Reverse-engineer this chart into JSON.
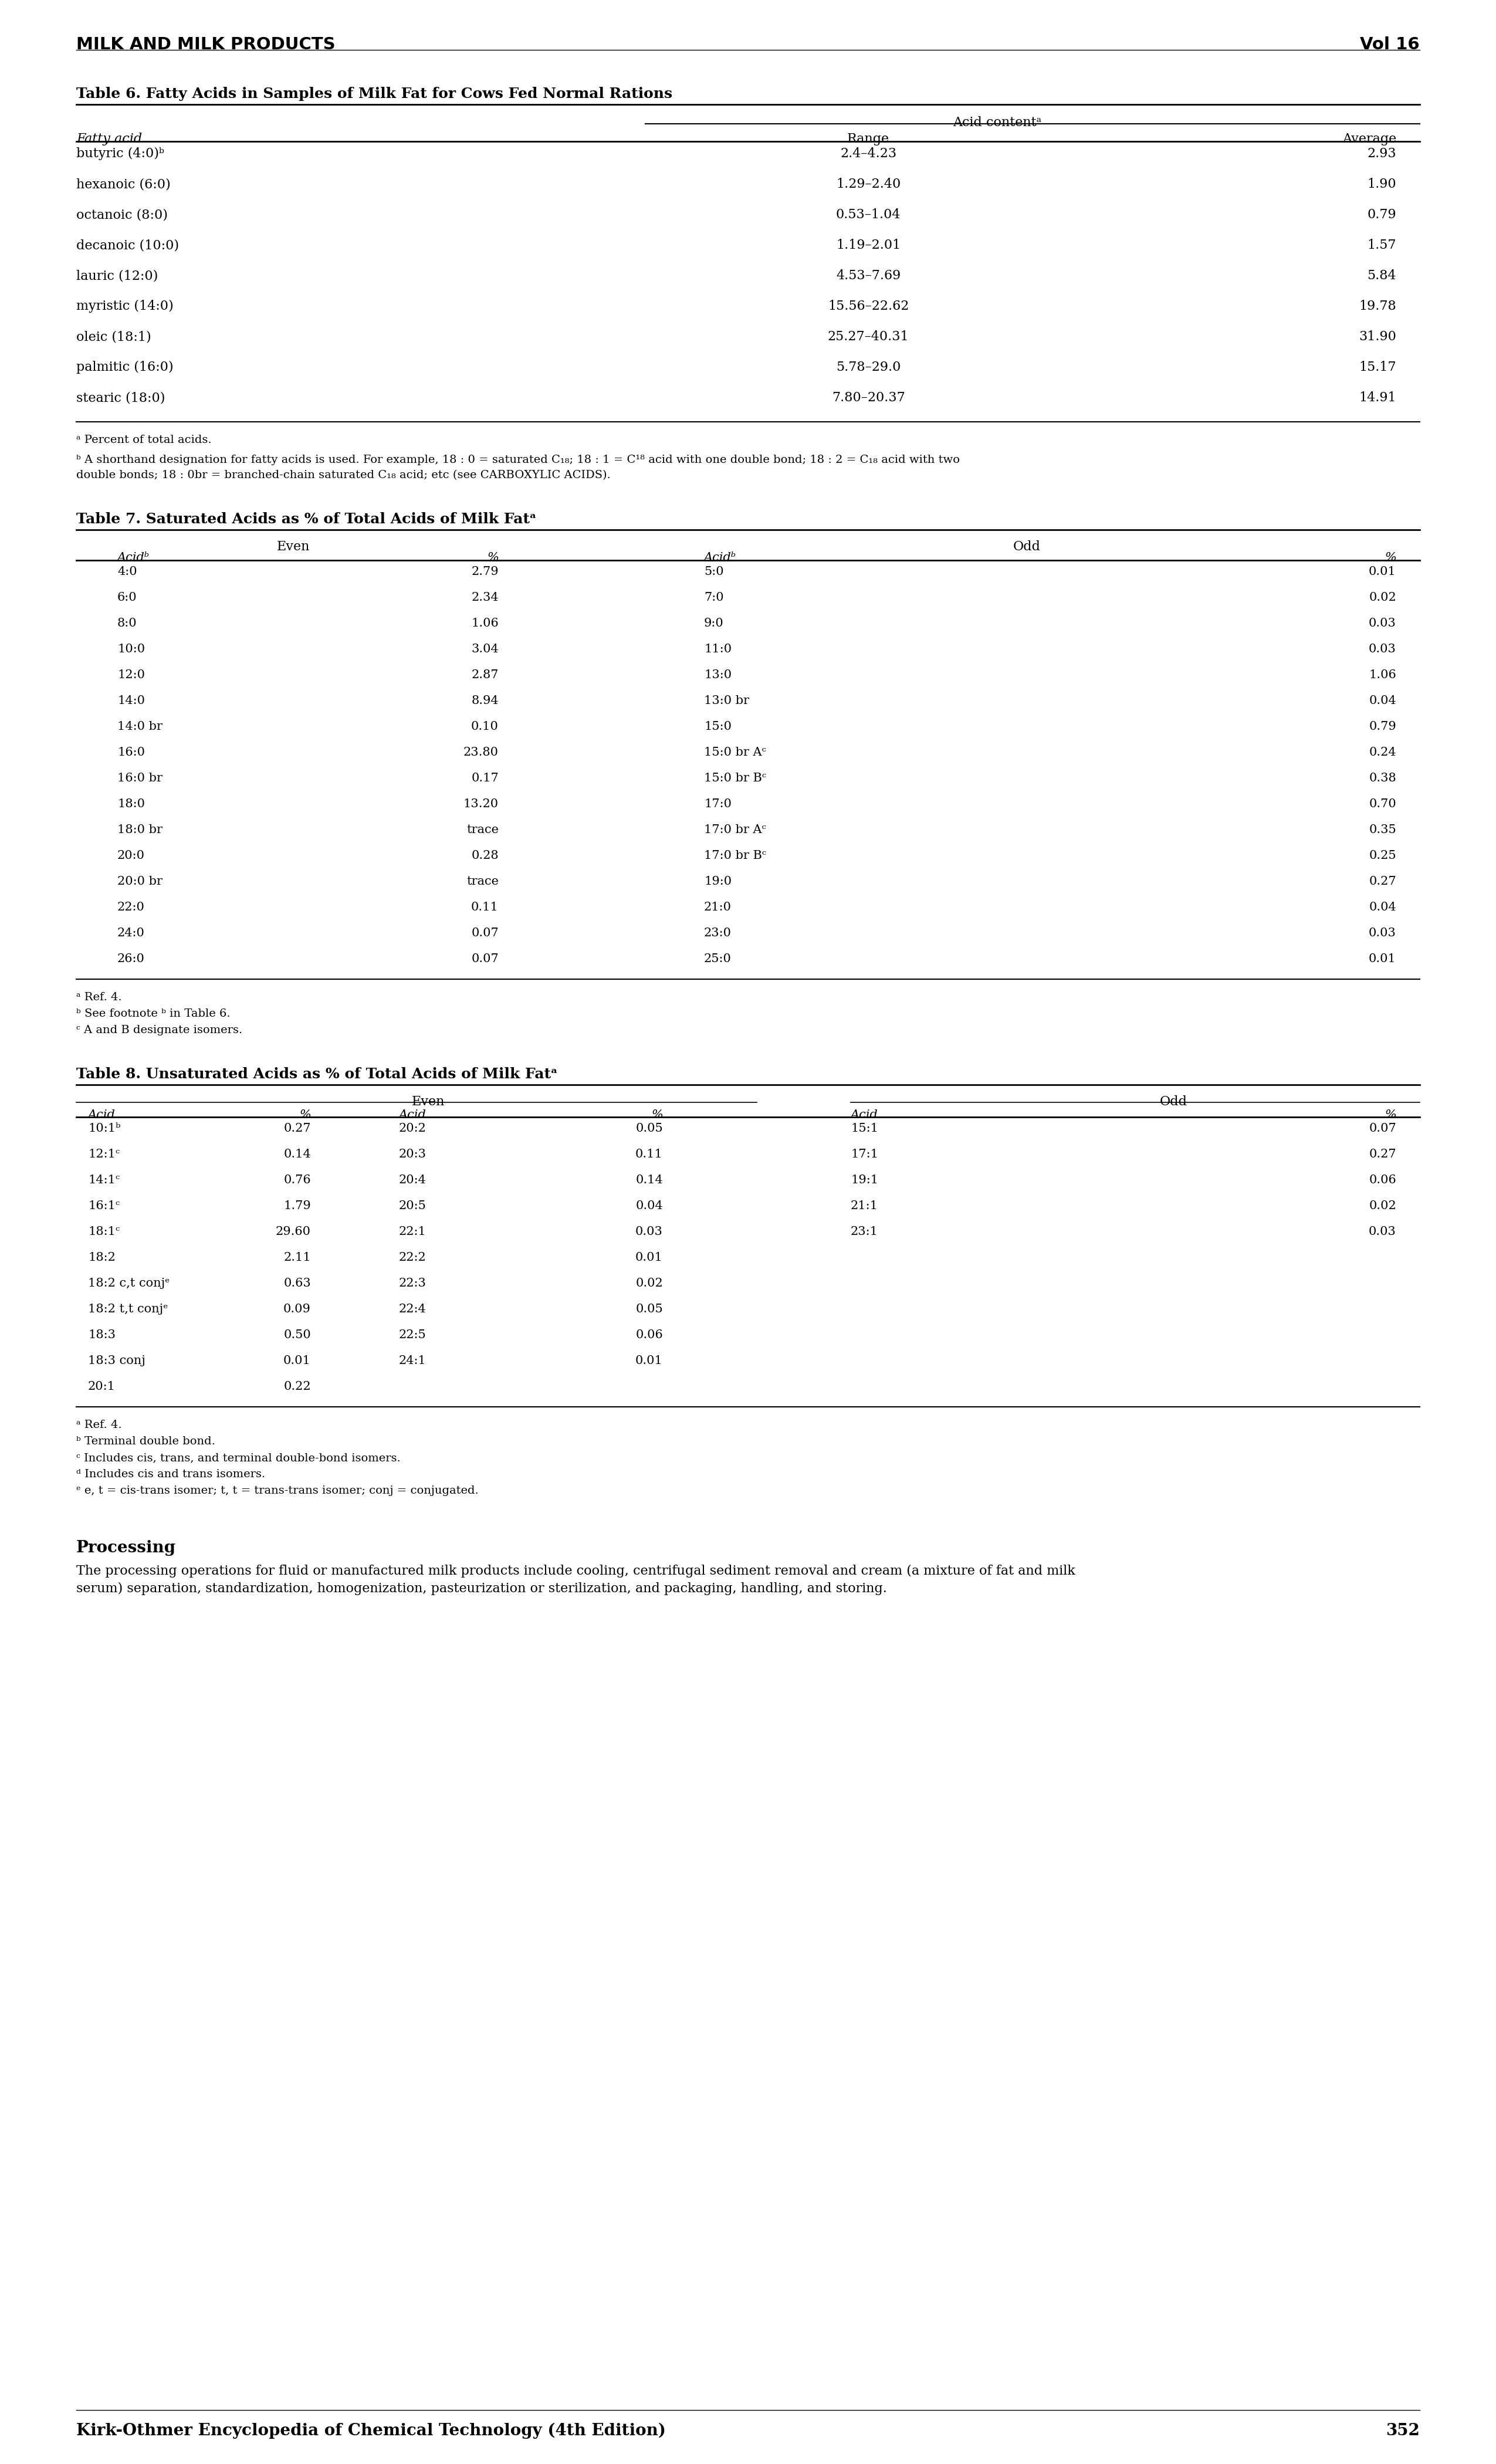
{
  "page_title_left": "MILK AND MILK PRODUCTS",
  "page_title_right": "Vol 16",
  "page_number": "352",
  "page_footer": "Kirk-Othmer Encyclopedia of Chemical Technology (4th Edition)",
  "table6_title": "Table 6. Fatty Acids in Samples of Milk Fat for Cows Fed Normal Rations",
  "table6_header_span": "Acid contentᵃ",
  "table6_col1": "Fatty acid",
  "table6_col2": "Range",
  "table6_col3": "Average",
  "table6_footnote_a": "ᵃ Percent of total acids.",
  "table6_footnote_b1": "ᵇ A shorthand designation for fatty acids is used. For example, 18 : 0 = saturated C₁₈; 18 : 1 = C¹⁸ acid with one double bond; 18 : 2 = C₁₈ acid with two",
  "table6_footnote_b2": "double bonds; 18 : 0br = branched-chain saturated C₁₈ acid; etc (see CARBOXYLIC ACIDS).",
  "table6_rows": [
    [
      "butyric (4:0)ᵇ",
      "2.4–4.23",
      "2.93"
    ],
    [
      "hexanoic (6:0)",
      "1.29–2.40",
      "1.90"
    ],
    [
      "octanoic (8:0)",
      "0.53–1.04",
      "0.79"
    ],
    [
      "decanoic (10:0)",
      "1.19–2.01",
      "1.57"
    ],
    [
      "lauric (12:0)",
      "4.53–7.69",
      "5.84"
    ],
    [
      "myristic (14:0)",
      "15.56–22.62",
      "19.78"
    ],
    [
      "oleic (18:1)",
      "25.27–40.31",
      "31.90"
    ],
    [
      "palmitic (16:0)",
      "5.78–29.0",
      "15.17"
    ],
    [
      "stearic (18:0)",
      "7.80–20.37",
      "14.91"
    ]
  ],
  "table7_title": "Table 7. Saturated Acids as % of Total Acids of Milk Fatᵃ",
  "table7_footnote_a": "ᵃ Ref. 4.",
  "table7_footnote_b": "ᵇ See footnote ᵇ in Table 6.",
  "table7_footnote_c": "ᶜ A and B designate isomers.",
  "table7_even_header": "Even",
  "table7_odd_header": "Odd",
  "table7_col_acid": "Acidᵇ",
  "table7_col_pct": "%",
  "table7_col_acid2": "Acidᵇ",
  "table7_col_pct2": "%",
  "table7_even_rows": [
    [
      "4:0",
      "2.79"
    ],
    [
      "6:0",
      "2.34"
    ],
    [
      "8:0",
      "1.06"
    ],
    [
      "10:0",
      "3.04"
    ],
    [
      "12:0",
      "2.87"
    ],
    [
      "14:0",
      "8.94"
    ],
    [
      "14:0 br",
      "0.10"
    ],
    [
      "16:0",
      "23.80"
    ],
    [
      "16:0 br",
      "0.17"
    ],
    [
      "18:0",
      "13.20"
    ],
    [
      "18:0 br",
      "trace"
    ],
    [
      "20:0",
      "0.28"
    ],
    [
      "20:0 br",
      "trace"
    ],
    [
      "22:0",
      "0.11"
    ],
    [
      "24:0",
      "0.07"
    ],
    [
      "26:0",
      "0.07"
    ]
  ],
  "table7_odd_rows": [
    [
      "5:0",
      "0.01"
    ],
    [
      "7:0",
      "0.02"
    ],
    [
      "9:0",
      "0.03"
    ],
    [
      "11:0",
      "0.03"
    ],
    [
      "13:0",
      "1.06"
    ],
    [
      "13:0 br",
      "0.04"
    ],
    [
      "15:0",
      "0.79"
    ],
    [
      "15:0 br Aᶜ",
      "0.24"
    ],
    [
      "15:0 br Bᶜ",
      "0.38"
    ],
    [
      "17:0",
      "0.70"
    ],
    [
      "17:0 br Aᶜ",
      "0.35"
    ],
    [
      "17:0 br Bᶜ",
      "0.25"
    ],
    [
      "19:0",
      "0.27"
    ],
    [
      "21:0",
      "0.04"
    ],
    [
      "23:0",
      "0.03"
    ],
    [
      "25:0",
      "0.01"
    ]
  ],
  "table8_title": "Table 8. Unsaturated Acids as % of Total Acids of Milk Fatᵃ",
  "table8_footnote_a": "ᵃ Ref. 4.",
  "table8_footnote_b": "ᵇ Terminal double bond.",
  "table8_footnote_c": "ᶜ Includes cis, trans, and terminal double-bond isomers.",
  "table8_footnote_d": "ᵈ Includes cis and trans isomers.",
  "table8_footnote_e": "ᵉ e, t = cis-trans isomer; t, t = trans-trans isomer; conj = conjugated.",
  "table8_even_header": "Even",
  "table8_odd_header": "Odd",
  "table8_col1": "Acid",
  "table8_col2": "%",
  "table8_col3": "Acid",
  "table8_col4": "%",
  "table8_col5": "Acid",
  "table8_col6": "%",
  "table8_even_rows": [
    [
      "10:1ᵇ",
      "0.27",
      "20:2",
      "0.05"
    ],
    [
      "12:1ᶜ",
      "0.14",
      "20:3",
      "0.11"
    ],
    [
      "14:1ᶜ",
      "0.76",
      "20:4",
      "0.14"
    ],
    [
      "16:1ᶜ",
      "1.79",
      "20:5",
      "0.04"
    ],
    [
      "18:1ᶜ",
      "29.60",
      "22:1",
      "0.03"
    ],
    [
      "18:2",
      "2.11",
      "22:2",
      "0.01"
    ],
    [
      "18:2 c,t conjᵉ",
      "0.63",
      "22:3",
      "0.02"
    ],
    [
      "18:2 t,t conjᵉ",
      "0.09",
      "22:4",
      "0.05"
    ],
    [
      "18:3",
      "0.50",
      "22:5",
      "0.06"
    ],
    [
      "18:3 conj",
      "0.01",
      "24:1",
      "0.01"
    ],
    [
      "20:1",
      "0.22",
      "",
      ""
    ]
  ],
  "table8_odd_rows": [
    [
      "15:1",
      "0.07"
    ],
    [
      "17:1",
      "0.27"
    ],
    [
      "19:1",
      "0.06"
    ],
    [
      "21:1",
      "0.02"
    ],
    [
      "23:1",
      "0.03"
    ]
  ],
  "processing_title": "Processing",
  "processing_line1": "The processing operations for fluid or manufactured milk products include cooling, centrifugal sediment removal and cream (a mixture of fat and milk",
  "processing_line2": "serum) separation, standardization, homogenization, pasteurization or sterilization, and packaging, handling, and storing."
}
